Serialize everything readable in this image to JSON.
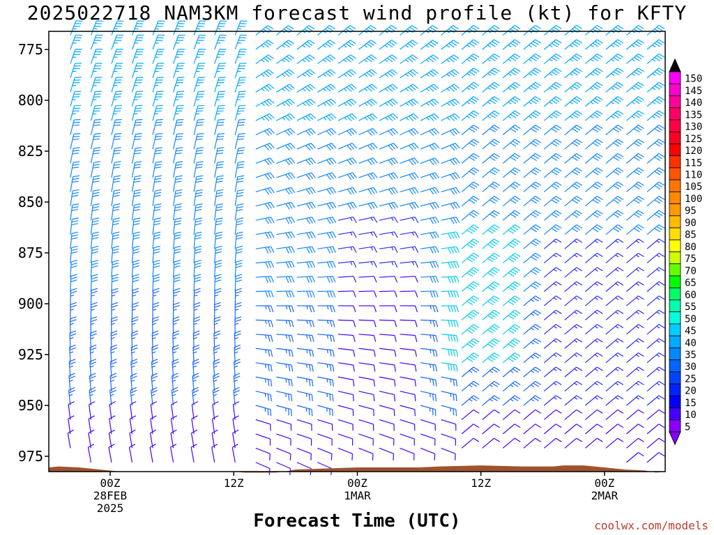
{
  "title": "2025022718 NAM3KM forecast wind profile (kt) for KFTY",
  "credit": "coolwx.com/models",
  "chart_data": {
    "type": "wind-barb-time-height",
    "xlabel": "Forecast Time (UTC)",
    "ylabel": "",
    "y_ticks": [
      775,
      800,
      825,
      850,
      875,
      900,
      925,
      950,
      975
    ],
    "ylim": [
      966,
      987
    ],
    "x_ticks": [
      {
        "hour": 0,
        "lines": [
          "00Z",
          "28FEB",
          "2025"
        ]
      },
      {
        "hour": 12,
        "lines": [
          "12Z"
        ]
      },
      {
        "hour": 24,
        "lines": [
          "00Z",
          "1MAR"
        ]
      },
      {
        "hour": 36,
        "lines": [
          "12Z"
        ]
      },
      {
        "hour": 48,
        "lines": [
          "00Z",
          "2MAR"
        ]
      }
    ],
    "xlim_hours": [
      -6,
      53
    ],
    "colorbar": {
      "labels": [
        150,
        145,
        140,
        135,
        130,
        125,
        120,
        115,
        110,
        105,
        100,
        95,
        90,
        85,
        80,
        75,
        70,
        65,
        60,
        55,
        50,
        45,
        40,
        35,
        30,
        25,
        20,
        15,
        10,
        5
      ],
      "colors": [
        "#ff00ff",
        "#ff00cc",
        "#ff0099",
        "#ff0066",
        "#ff0044",
        "#ff0022",
        "#ff0000",
        "#ff3300",
        "#ff5500",
        "#ff7700",
        "#ff8800",
        "#ff9900",
        "#ffbb00",
        "#ffdd00",
        "#ffff00",
        "#ccff00",
        "#66ff00",
        "#00ff00",
        "#00ff66",
        "#00ffaa",
        "#00ffdd",
        "#00ccff",
        "#00aaff",
        "#0088ff",
        "#0066ff",
        "#0044ff",
        "#0022ff",
        "#0000ff",
        "#4400ff",
        "#8800ff"
      ],
      "top_arrow_color": "#000000",
      "bottom_arrow_color": "#8800ff"
    },
    "terrain_color": "#a0522d",
    "terrain_top_mb": [
      [
        -6,
        980.5
      ],
      [
        -5,
        980.0
      ],
      [
        -3,
        980.5
      ],
      [
        -1,
        981.5
      ],
      [
        0,
        982.0
      ],
      [
        1,
        982.5
      ],
      [
        12,
        982.5
      ],
      [
        13,
        983.0
      ],
      [
        16,
        983.0
      ],
      [
        17,
        982.5
      ],
      [
        18,
        981.5
      ],
      [
        21,
        981.0
      ],
      [
        24,
        980.5
      ],
      [
        30,
        980.5
      ],
      [
        32,
        980.0
      ],
      [
        36,
        979.5
      ],
      [
        40,
        980.0
      ],
      [
        43,
        980.0
      ],
      [
        44,
        979.5
      ],
      [
        46,
        979.5
      ],
      [
        47,
        980.0
      ],
      [
        48,
        980.5
      ],
      [
        50,
        981.5
      ],
      [
        52,
        982.0
      ],
      [
        53,
        983.0
      ]
    ]
  }
}
